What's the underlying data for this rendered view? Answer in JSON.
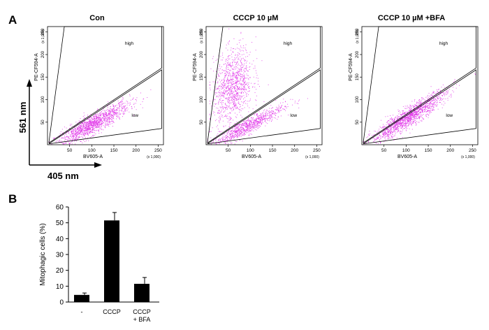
{
  "panel_a": {
    "label": "A",
    "y_arrow_label": "561 nm",
    "x_arrow_label": "405 nm"
  },
  "panel_b": {
    "label": "B"
  },
  "chart_data": [
    {
      "type": "scatter",
      "title": "Con",
      "xlabel": "BV605-A",
      "ylabel": "PE-CF594-A",
      "x_multiplier_label": "(x 1,000)",
      "y_multiplier_label": "(x 1,000)",
      "xlim": [
        0,
        262
      ],
      "ylim": [
        0,
        262
      ],
      "xticks": [
        50,
        100,
        150,
        200,
        250
      ],
      "yticks": [
        50,
        100,
        150,
        200,
        250
      ],
      "gate_labels": [
        "high",
        "low"
      ],
      "point_color": "#e030e8",
      "population": {
        "description": "main diagonal cloud below the gate line",
        "center_x": 100,
        "center_y": 45,
        "slope": 0.52,
        "spread": 11,
        "count": 1400
      }
    },
    {
      "type": "scatter",
      "title": "CCCP 10 µM",
      "xlabel": "BV605-A",
      "ylabel": "PE-CF594-A",
      "x_multiplier_label": "(x 1,000)",
      "y_multiplier_label": "(x 1,000)",
      "xlim": [
        0,
        262
      ],
      "ylim": [
        0,
        262
      ],
      "xticks": [
        50,
        100,
        150,
        200,
        250
      ],
      "yticks": [
        50,
        100,
        150,
        200,
        250
      ],
      "gate_labels": [
        "high",
        "low"
      ],
      "point_color": "#e030e8",
      "population": {
        "description": "diagonal cloud plus large population in high gate",
        "center_x": 90,
        "center_y": 40,
        "slope": 0.52,
        "spread": 9,
        "count": 900,
        "high_count": 1100,
        "high_center_x": 60,
        "high_center_y": 130
      }
    },
    {
      "type": "scatter",
      "title": "CCCP 10 µM +BFA",
      "xlabel": "BV605-A",
      "ylabel": "PE-CF594-A",
      "x_multiplier_label": "(x 1,000)",
      "y_multiplier_label": "(x 1,000)",
      "xlim": [
        0,
        262
      ],
      "ylim": [
        0,
        262
      ],
      "xticks": [
        50,
        100,
        150,
        200,
        250
      ],
      "yticks": [
        50,
        100,
        150,
        200,
        250
      ],
      "gate_labels": [
        "high",
        "low"
      ],
      "point_color": "#e030e8",
      "population": {
        "description": "diagonal cloud along gate line",
        "center_x": 105,
        "center_y": 62,
        "slope": 0.62,
        "spread": 11,
        "count": 1500
      }
    },
    {
      "type": "bar",
      "categories": [
        "-",
        "CCCP",
        "CCCP\n+ BFA"
      ],
      "values": [
        4.5,
        51.5,
        11.5
      ],
      "errors": [
        1.2,
        5.0,
        4.0
      ],
      "ylabel": "Mitophagic cells (%)",
      "ylim": [
        0,
        60
      ],
      "yticks": [
        0,
        10,
        20,
        30,
        40,
        50,
        60
      ],
      "bar_color": "#000000"
    }
  ]
}
